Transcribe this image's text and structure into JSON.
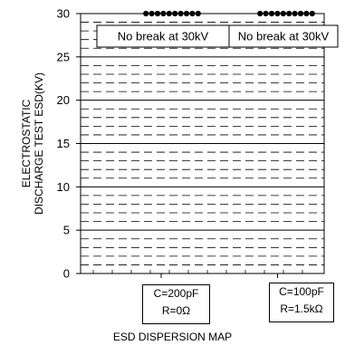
{
  "chart_data": {
    "type": "scatter",
    "ylabel_lines": [
      "ELECTROSTATIC",
      "DISCHARGE TEST ESD(KV)"
    ],
    "xlabel": "ESD DISPERSION MAP",
    "ylim": [
      0,
      30
    ],
    "yticks": [
      "0",
      "5",
      "10",
      "15",
      "20",
      "25",
      "30"
    ],
    "y_major_step": 5,
    "y_minor_step": 1,
    "grid": true,
    "categories": [
      {
        "lines": [
          "C=200pF",
          "R=0Ω"
        ]
      },
      {
        "lines": [
          "C=100pF",
          "R=1.5kΩ"
        ]
      }
    ],
    "series": [
      {
        "category": 0,
        "points": 10,
        "value": 30
      },
      {
        "category": 1,
        "points": 10,
        "value": 30
      }
    ],
    "annotations": [
      "No break at 30kV",
      "No break at 30kV"
    ]
  }
}
